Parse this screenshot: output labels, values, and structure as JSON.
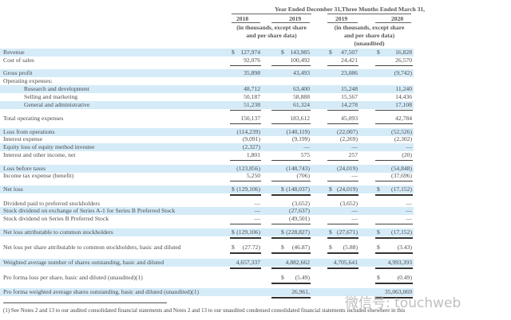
{
  "header": {
    "year_group": "Year Ended December 31,",
    "quarter_group": "Three Months Ended March 31,",
    "years": [
      "2018",
      "2019",
      "2019",
      "2020"
    ],
    "units_line1": "(in thousands, except share",
    "units_line2": "and per share data)",
    "unaudited": "(unaudited)"
  },
  "rows": [
    {
      "label": "Revenue",
      "dollar": true,
      "values": [
        "127,974",
        "143,985",
        "47,507",
        "16,828"
      ]
    },
    {
      "label": "Cost of sales",
      "dollar": false,
      "values": [
        "92,076",
        "100,492",
        "24,421",
        "26,570"
      ]
    },
    {
      "label": "Gross profit",
      "dollar": false,
      "values": [
        "35,898",
        "43,493",
        "23,086",
        "(9,742)"
      ]
    },
    {
      "label": "Operating expenses:",
      "dollar": false,
      "values": [
        "",
        "",
        "",
        ""
      ]
    },
    {
      "label": "Research and development",
      "dollar": false,
      "values": [
        "48,712",
        "63,400",
        "15,248",
        "11,240"
      ]
    },
    {
      "label": "Selling and marketing",
      "dollar": false,
      "values": [
        "50,187",
        "58,888",
        "15,567",
        "14,436"
      ]
    },
    {
      "label": "General and administrative",
      "dollar": false,
      "values": [
        "51,238",
        "61,324",
        "14,278",
        "17,108"
      ]
    },
    {
      "label": "Total operating expenses",
      "dollar": false,
      "values": [
        "150,137",
        "183,612",
        "45,093",
        "42,784"
      ]
    },
    {
      "label": "Loss from operations",
      "dollar": false,
      "values": [
        "(114,239)",
        "(140,119)",
        "(22,007)",
        "(52,526)"
      ]
    },
    {
      "label": "Interest expense",
      "dollar": false,
      "values": [
        "(9,091)",
        "(9,199)",
        "(2,269)",
        "(2,302)"
      ]
    },
    {
      "label": "Equity loss of equity method investee",
      "dollar": false,
      "values": [
        "(2,327)",
        "—",
        "—",
        "—"
      ]
    },
    {
      "label": "Interest and other income, net",
      "dollar": false,
      "values": [
        "1,801",
        "575",
        "257",
        "(20)"
      ]
    },
    {
      "label": "Loss before taxes",
      "dollar": false,
      "values": [
        "(123,856)",
        "(148,743)",
        "(24,019)",
        "(54,848)"
      ]
    },
    {
      "label": "Income tax expense (benefit)",
      "dollar": false,
      "values": [
        "5,250",
        "(706)",
        "—",
        "(37,696)"
      ]
    },
    {
      "label": "Net loss",
      "dollar": true,
      "values": [
        "(129,106)",
        "(148,037)",
        "(24,019)",
        "(17,152)"
      ]
    },
    {
      "label": "Dividend paid to preferred stockholders",
      "dollar": false,
      "values": [
        "—",
        "(3,652)",
        "(3,652)",
        "—"
      ]
    },
    {
      "label": "Stock dividend on exchange of Series A-1 for Series B Preferred Stock",
      "dollar": false,
      "values": [
        "—",
        "(27,637)",
        "—",
        "—"
      ]
    },
    {
      "label": "Stock dividend on Series B Preferred Stock",
      "dollar": false,
      "values": [
        "—",
        "(49,501)",
        "—",
        "—"
      ]
    },
    {
      "label": "Net loss attributable to common stockholders",
      "dollar": true,
      "values": [
        "(129,106)",
        "(228,827)",
        "(27,671)",
        "(17,152)"
      ]
    },
    {
      "label": "Net loss per share attributable to common stockholders, basic and diluted",
      "dollar": true,
      "values": [
        "(27.72)",
        "(46.87)",
        "(5.88)",
        "(3.43)"
      ]
    },
    {
      "label": "Weighted average number of shares outstanding, basic and diluted",
      "dollar": false,
      "values": [
        "4,657,337",
        "4,882,662",
        "4,705,641",
        "4,993,393"
      ]
    },
    {
      "label": "Pro forma loss per share, basic and diluted (unaudited)(1)",
      "dollar": true,
      "values": [
        "",
        "(5.49)",
        "",
        "(0.49)"
      ]
    },
    {
      "label": "Pro forma weighted average shares outstanding, basic and diluted (unaudited)(1)",
      "dollar": false,
      "values": [
        "",
        "26,961,",
        "",
        "35,063,069"
      ]
    }
  ],
  "footnote": "(1) See Notes 2 and 13 to our audited consolidated financial statements and Notes 2 and 13 to our unaudited condensed consolidated financial statements included elsewhere in this",
  "watermark": "微信号: touchweb"
}
